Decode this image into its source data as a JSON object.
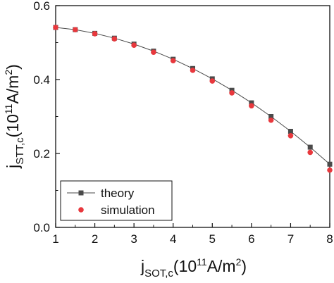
{
  "chart_data": {
    "type": "line",
    "title": "",
    "xlabel": {
      "base": "j",
      "sub": "SOT,c",
      "paren_open": "(10",
      "sup": "11",
      "unit": "A/m",
      "unit_sup": "2",
      "paren_close": ")"
    },
    "ylabel": {
      "base": "j",
      "sub": "STT,c",
      "paren_open": "(10",
      "sup": "11",
      "unit": "A/m",
      "unit_sup": "2",
      "paren_close": ")"
    },
    "xlim": [
      1,
      8
    ],
    "ylim": [
      0.0,
      0.6
    ],
    "xticks": [
      "1",
      "2",
      "3",
      "4",
      "5",
      "6",
      "7",
      "8"
    ],
    "yticks": [
      "0.0",
      "0.2",
      "0.4",
      "0.6"
    ],
    "grid": false,
    "legend_position": "bottom-left",
    "series": [
      {
        "name": "theory",
        "style": "line-square",
        "color": "#4a4a4a",
        "x": [
          1,
          1.5,
          2,
          2.5,
          3,
          3.5,
          4,
          4.5,
          5,
          5.5,
          6,
          6.5,
          7,
          7.5,
          8
        ],
        "y": [
          0.541,
          0.535,
          0.525,
          0.512,
          0.496,
          0.477,
          0.455,
          0.43,
          0.402,
          0.371,
          0.337,
          0.3,
          0.26,
          0.217,
          0.171
        ]
      },
      {
        "name": "simulation",
        "style": "circle",
        "color": "#e8383d",
        "x": [
          1,
          1.5,
          2,
          2.5,
          3,
          3.5,
          4,
          4.5,
          5,
          5.5,
          6,
          6.5,
          7,
          7.5,
          8
        ],
        "y": [
          0.541,
          0.535,
          0.524,
          0.51,
          0.493,
          0.474,
          0.451,
          0.425,
          0.396,
          0.364,
          0.329,
          0.29,
          0.248,
          0.203,
          0.155
        ]
      }
    ]
  }
}
